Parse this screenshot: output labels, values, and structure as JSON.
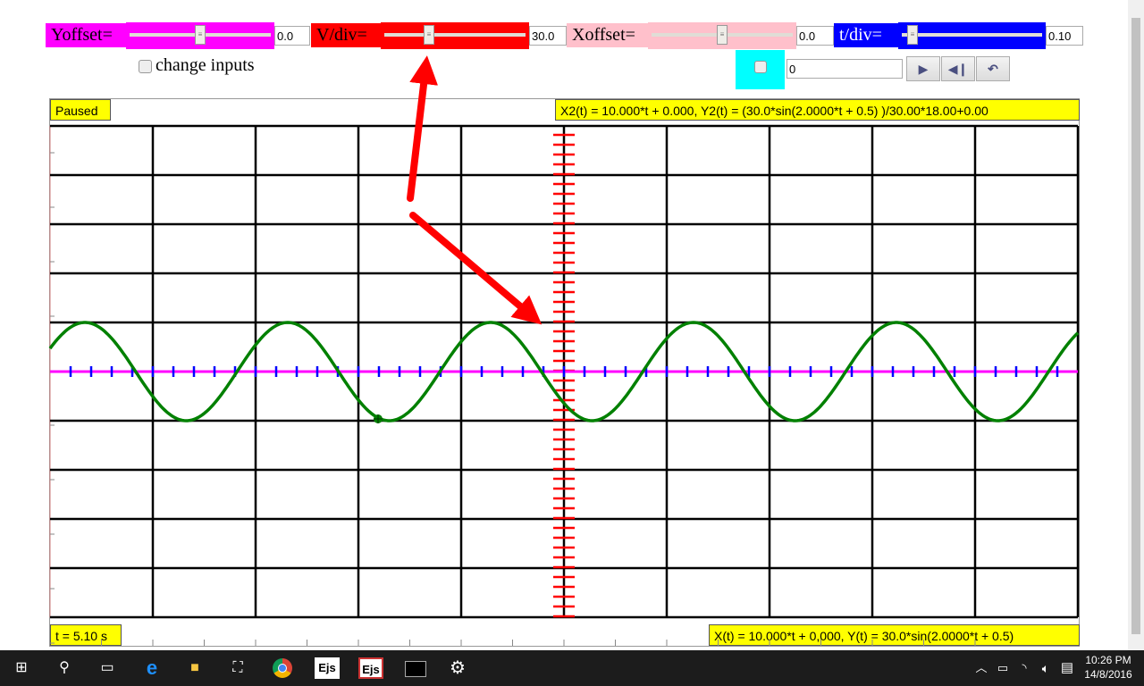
{
  "controls": {
    "yoffset": {
      "label": "Yoffset=",
      "value": "0.0",
      "slider_fraction": 0.5,
      "color": "#ff00ff"
    },
    "vdiv": {
      "label": "V/div=",
      "value": "30.0",
      "slider_fraction": 0.3,
      "color": "#ff0000"
    },
    "xoffset": {
      "label": "Xoffset=",
      "value": "0.0",
      "slider_fraction": 0.5,
      "color": "#ffc0cb"
    },
    "tdiv": {
      "label": "t/div=",
      "value": "0.10",
      "slider_fraction": 0.05,
      "color": "#0000ff"
    },
    "change_inputs": "change inputs",
    "counter_value": "0",
    "play_icon": "play-icon",
    "step_icon": "step-back-icon",
    "reset_icon": "reset-icon"
  },
  "scope": {
    "status": "Paused",
    "formula_top": "X2(t) = 10.000*t + 0.000, Y2(t) = (30.0*sin(2.0000*t + 0.5) )/30.00*18.00+0.00",
    "time": "t = 5.10 s",
    "formula_bottom": "X(t) = 10.000*t + 0,000, Y(t) = 30.0*sin(2.0000*t + 0.5)",
    "trace_color": "#008000",
    "x_axis_color": "#ff00ff",
    "y_axis_color": "#ff0000"
  },
  "taskbar": {
    "time": "10:26 PM",
    "date": "14/8/2016",
    "apps": [
      "Ejs",
      "Ejs"
    ]
  }
}
